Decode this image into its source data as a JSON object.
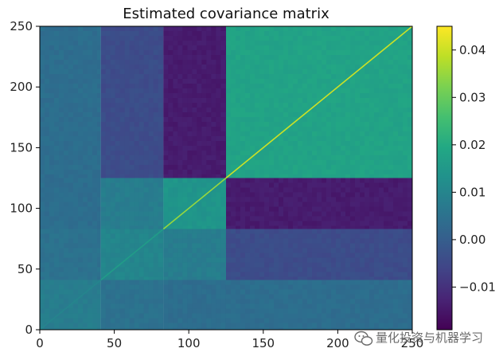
{
  "chart_data": {
    "type": "heatmap",
    "title": "Estimated covariance matrix",
    "xlabel": "",
    "ylabel": "",
    "colormap": "viridis",
    "n": 250,
    "xlim": [
      0,
      250
    ],
    "ylim": [
      0,
      250
    ],
    "x_ticks": [
      "0",
      "50",
      "100",
      "150",
      "200",
      "250"
    ],
    "y_ticks": [
      "0",
      "50",
      "100",
      "150",
      "200",
      "250"
    ],
    "colorbar": {
      "min": -0.019,
      "max": 0.045,
      "ticks": [
        -0.01,
        0.0,
        0.01,
        0.02,
        0.03,
        0.04
      ],
      "tick_labels": [
        "−0.01",
        "0.00",
        "0.01",
        "0.02",
        "0.03",
        "0.04"
      ]
    },
    "block_boundaries": [
      0,
      41,
      83,
      125,
      250
    ],
    "block_covariance": [
      [
        0.008,
        0.005,
        0.004,
        0.004
      ],
      [
        0.005,
        0.01,
        0.008,
        -0.004
      ],
      [
        0.004,
        0.008,
        0.014,
        -0.014
      ],
      [
        0.004,
        -0.004,
        -0.014,
        0.018
      ]
    ],
    "diagonal_values": [
      {
        "range": [
          0,
          41
        ],
        "value": 0.01
      },
      {
        "range": [
          41,
          83
        ],
        "value": 0.016
      },
      {
        "range": [
          83,
          125
        ],
        "value": 0.035
      },
      {
        "range": [
          125,
          250
        ],
        "value": 0.04
      }
    ]
  },
  "watermark": {
    "text": "量化投资与机器学习",
    "icon": "wechat-icon"
  }
}
